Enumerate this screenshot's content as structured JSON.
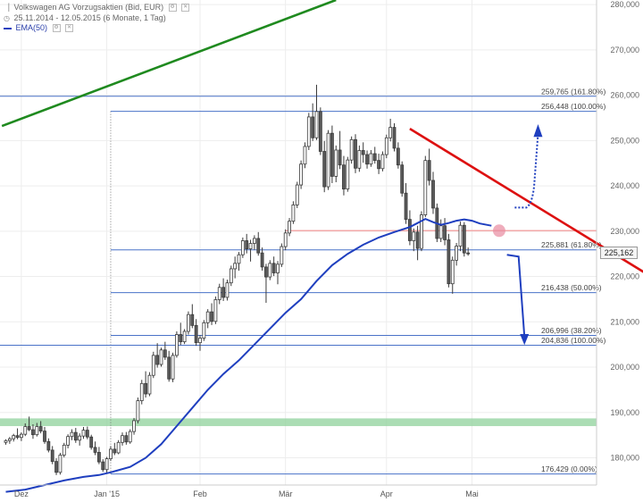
{
  "header": {
    "title": "Volkswagen AG Vorzugsaktien (Bid, EUR)",
    "range": "25.11.2014 - 12.05.2015 (6 Monate, 1 Tag)",
    "ema_label": "EMA(50)"
  },
  "colors": {
    "candle_up": "#ffffff",
    "candle_down": "#5a5a5a",
    "ema": "#1f3fbf",
    "trend_green": "#1f8a1f",
    "trend_red": "#dd1111",
    "fib_line": "#4a72c8",
    "support_zone": "#8fd19b",
    "resistance_line": "#f2a8a8",
    "arrow": "#1f3fbf"
  },
  "chart_data": {
    "type": "candlestick",
    "ylim": [
      174000,
      281000
    ],
    "y_ticks": [
      {
        "value": 180000,
        "label": "180,000"
      },
      {
        "value": 190000,
        "label": "190,000"
      },
      {
        "value": 200000,
        "label": "200,000"
      },
      {
        "value": 210000,
        "label": "210,000"
      },
      {
        "value": 220000,
        "label": "220,000"
      },
      {
        "value": 230000,
        "label": "230,000"
      },
      {
        "value": 240000,
        "label": "240,000"
      },
      {
        "value": 250000,
        "label": "250,000"
      },
      {
        "value": 260000,
        "label": "260,000"
      },
      {
        "value": 270000,
        "label": "270,000"
      },
      {
        "value": 280000,
        "label": "280,000"
      }
    ],
    "x_ticks": [
      {
        "index": 4,
        "label": "Dez"
      },
      {
        "index": 26,
        "label": "Jan '15"
      },
      {
        "index": 50,
        "label": "Feb"
      },
      {
        "index": 72,
        "label": "Mär"
      },
      {
        "index": 98,
        "label": "Apr"
      },
      {
        "index": 120,
        "label": "Mai"
      }
    ],
    "last_price": {
      "value": 225162,
      "label": "225,162"
    },
    "fib_levels": [
      {
        "value": 259765,
        "label": "259,765 (161.80%)",
        "start_index": 0
      },
      {
        "value": 256448,
        "label": "256,448 (100.00%)",
        "start_index": 27
      },
      {
        "value": 225881,
        "label": "225,881 (61.80%)",
        "start_index": 27
      },
      {
        "value": 216438,
        "label": "216,438 (50.00%)",
        "start_index": 27
      },
      {
        "value": 206996,
        "label": "206,996 (38.20%)",
        "start_index": 27
      },
      {
        "value": 204836,
        "label": "204,836 (100.00%)",
        "start_index": 0
      },
      {
        "value": 176429,
        "label": "176,429 (0.00%)",
        "start_index": 27
      }
    ],
    "support_zone": [
      187000,
      188700
    ],
    "resistance_level": 230100,
    "trendlines": [
      {
        "name": "green",
        "from": [
          -1,
          253200
        ],
        "to": [
          85,
          281000
        ]
      },
      {
        "name": "red",
        "from": [
          104,
          252600
        ],
        "to": [
          168,
          219000
        ]
      }
    ],
    "ema": [
      [
        0,
        172500
      ],
      [
        5,
        173000
      ],
      [
        10,
        174000
      ],
      [
        15,
        175000
      ],
      [
        20,
        175800
      ],
      [
        24,
        176200
      ],
      [
        27,
        176800
      ],
      [
        32,
        178000
      ],
      [
        36,
        180000
      ],
      [
        40,
        183000
      ],
      [
        44,
        187000
      ],
      [
        48,
        191000
      ],
      [
        52,
        195000
      ],
      [
        56,
        198500
      ],
      [
        60,
        201500
      ],
      [
        64,
        205000
      ],
      [
        68,
        208500
      ],
      [
        72,
        212000
      ],
      [
        76,
        215000
      ],
      [
        80,
        219000
      ],
      [
        84,
        222500
      ],
      [
        88,
        225000
      ],
      [
        92,
        227000
      ],
      [
        96,
        228600
      ],
      [
        100,
        229800
      ],
      [
        104,
        230900
      ],
      [
        106,
        231800
      ],
      [
        108,
        232700
      ],
      [
        110,
        232000
      ],
      [
        112,
        231400
      ],
      [
        114,
        231800
      ],
      [
        116,
        232300
      ],
      [
        118,
        232600
      ],
      [
        120,
        232300
      ],
      [
        122,
        231700
      ],
      [
        125,
        231200
      ]
    ],
    "candles": [
      {
        "o": 183400,
        "h": 184100,
        "l": 182900,
        "c": 183800
      },
      {
        "o": 183800,
        "h": 184600,
        "l": 183100,
        "c": 184200
      },
      {
        "o": 184200,
        "h": 185300,
        "l": 183600,
        "c": 184900
      },
      {
        "o": 184900,
        "h": 186500,
        "l": 184100,
        "c": 184500
      },
      {
        "o": 184500,
        "h": 185600,
        "l": 183700,
        "c": 185200
      },
      {
        "o": 185200,
        "h": 187600,
        "l": 184800,
        "c": 186900
      },
      {
        "o": 186900,
        "h": 189100,
        "l": 185900,
        "c": 186200
      },
      {
        "o": 186200,
        "h": 187400,
        "l": 184200,
        "c": 185100
      },
      {
        "o": 185100,
        "h": 187700,
        "l": 184700,
        "c": 186900
      },
      {
        "o": 186900,
        "h": 188100,
        "l": 185400,
        "c": 185900
      },
      {
        "o": 185900,
        "h": 186800,
        "l": 183100,
        "c": 183600
      },
      {
        "o": 183600,
        "h": 184300,
        "l": 181200,
        "c": 181700
      },
      {
        "o": 181700,
        "h": 182600,
        "l": 178600,
        "c": 179200
      },
      {
        "o": 179200,
        "h": 179900,
        "l": 176200,
        "c": 176800
      },
      {
        "o": 176800,
        "h": 181100,
        "l": 176300,
        "c": 180600
      },
      {
        "o": 180600,
        "h": 183300,
        "l": 180100,
        "c": 182800
      },
      {
        "o": 182800,
        "h": 185200,
        "l": 182100,
        "c": 184700
      },
      {
        "o": 184700,
        "h": 186300,
        "l": 183900,
        "c": 185600
      },
      {
        "o": 185600,
        "h": 186600,
        "l": 183300,
        "c": 183900
      },
      {
        "o": 183900,
        "h": 185400,
        "l": 182700,
        "c": 184800
      },
      {
        "o": 184800,
        "h": 186800,
        "l": 184200,
        "c": 186100
      },
      {
        "o": 186100,
        "h": 186900,
        "l": 184100,
        "c": 184600
      },
      {
        "o": 184600,
        "h": 185100,
        "l": 181800,
        "c": 182300
      },
      {
        "o": 182300,
        "h": 183600,
        "l": 180600,
        "c": 181200
      },
      {
        "o": 181200,
        "h": 182400,
        "l": 178600,
        "c": 179100
      },
      {
        "o": 179100,
        "h": 179700,
        "l": 176900,
        "c": 177400
      },
      {
        "o": 177400,
        "h": 180200,
        "l": 176700,
        "c": 179800
      },
      {
        "o": 179800,
        "h": 182600,
        "l": 179300,
        "c": 181900
      },
      {
        "o": 181900,
        "h": 183300,
        "l": 180600,
        "c": 181100
      },
      {
        "o": 181100,
        "h": 183900,
        "l": 180800,
        "c": 183400
      },
      {
        "o": 183400,
        "h": 185600,
        "l": 182700,
        "c": 184900
      },
      {
        "o": 184900,
        "h": 185700,
        "l": 182900,
        "c": 183500
      },
      {
        "o": 183500,
        "h": 186300,
        "l": 183100,
        "c": 185800
      },
      {
        "o": 185800,
        "h": 188800,
        "l": 185100,
        "c": 188200
      },
      {
        "o": 188200,
        "h": 193300,
        "l": 187600,
        "c": 192600
      },
      {
        "o": 192600,
        "h": 197200,
        "l": 191800,
        "c": 196400
      },
      {
        "o": 196400,
        "h": 199100,
        "l": 193300,
        "c": 194100
      },
      {
        "o": 194100,
        "h": 198900,
        "l": 193600,
        "c": 198200
      },
      {
        "o": 198200,
        "h": 203400,
        "l": 197600,
        "c": 202600
      },
      {
        "o": 202600,
        "h": 205300,
        "l": 199900,
        "c": 200600
      },
      {
        "o": 200600,
        "h": 204300,
        "l": 200100,
        "c": 203800
      },
      {
        "o": 203800,
        "h": 205600,
        "l": 201600,
        "c": 202200
      },
      {
        "o": 202200,
        "h": 203600,
        "l": 196800,
        "c": 197400
      },
      {
        "o": 197400,
        "h": 203200,
        "l": 196700,
        "c": 202600
      },
      {
        "o": 202600,
        "h": 207900,
        "l": 202100,
        "c": 207200
      },
      {
        "o": 207200,
        "h": 209800,
        "l": 204900,
        "c": 205600
      },
      {
        "o": 205600,
        "h": 208400,
        "l": 205100,
        "c": 207900
      },
      {
        "o": 207900,
        "h": 212300,
        "l": 207200,
        "c": 211600
      },
      {
        "o": 211600,
        "h": 213900,
        "l": 208600,
        "c": 209200
      },
      {
        "o": 209200,
        "h": 210600,
        "l": 204700,
        "c": 205400
      },
      {
        "o": 205400,
        "h": 207100,
        "l": 203600,
        "c": 206400
      },
      {
        "o": 206400,
        "h": 210400,
        "l": 205800,
        "c": 209800
      },
      {
        "o": 209800,
        "h": 212800,
        "l": 208600,
        "c": 212200
      },
      {
        "o": 212200,
        "h": 214100,
        "l": 209300,
        "c": 210100
      },
      {
        "o": 210100,
        "h": 215600,
        "l": 209500,
        "c": 214900
      },
      {
        "o": 214900,
        "h": 218400,
        "l": 213900,
        "c": 217600
      },
      {
        "o": 217600,
        "h": 219600,
        "l": 214600,
        "c": 215400
      },
      {
        "o": 215400,
        "h": 219300,
        "l": 214700,
        "c": 218600
      },
      {
        "o": 218600,
        "h": 222400,
        "l": 217900,
        "c": 221700
      },
      {
        "o": 221700,
        "h": 224400,
        "l": 219600,
        "c": 222900
      },
      {
        "o": 222900,
        "h": 225400,
        "l": 221300,
        "c": 224800
      },
      {
        "o": 224800,
        "h": 228600,
        "l": 224100,
        "c": 227900
      },
      {
        "o": 227900,
        "h": 229400,
        "l": 225100,
        "c": 226100
      },
      {
        "o": 226100,
        "h": 228100,
        "l": 223300,
        "c": 227300
      },
      {
        "o": 227300,
        "h": 229100,
        "l": 225900,
        "c": 228400
      },
      {
        "o": 228400,
        "h": 229800,
        "l": 224600,
        "c": 225200
      },
      {
        "o": 225200,
        "h": 226400,
        "l": 221300,
        "c": 222100
      },
      {
        "o": 222100,
        "h": 222800,
        "l": 214200,
        "c": 219900
      },
      {
        "o": 219900,
        "h": 223600,
        "l": 219200,
        "c": 222900
      },
      {
        "o": 222900,
        "h": 224400,
        "l": 220100,
        "c": 220800
      },
      {
        "o": 220800,
        "h": 223400,
        "l": 218300,
        "c": 222700
      },
      {
        "o": 222700,
        "h": 227300,
        "l": 222100,
        "c": 226600
      },
      {
        "o": 226600,
        "h": 230400,
        "l": 225800,
        "c": 229600
      },
      {
        "o": 229600,
        "h": 232900,
        "l": 228900,
        "c": 232200
      },
      {
        "o": 232200,
        "h": 236600,
        "l": 231600,
        "c": 235800
      },
      {
        "o": 235800,
        "h": 240900,
        "l": 235100,
        "c": 240200
      },
      {
        "o": 240200,
        "h": 245600,
        "l": 239300,
        "c": 244800
      },
      {
        "o": 244800,
        "h": 249600,
        "l": 243900,
        "c": 248700
      },
      {
        "o": 248700,
        "h": 256100,
        "l": 247900,
        "c": 255200
      },
      {
        "o": 255200,
        "h": 258200,
        "l": 249900,
        "c": 250600
      },
      {
        "o": 250600,
        "h": 262300,
        "l": 250100,
        "c": 256400
      },
      {
        "o": 256400,
        "h": 257300,
        "l": 246800,
        "c": 247600
      },
      {
        "o": 247600,
        "h": 249900,
        "l": 238600,
        "c": 239800
      },
      {
        "o": 239800,
        "h": 252300,
        "l": 239100,
        "c": 251600
      },
      {
        "o": 251600,
        "h": 253300,
        "l": 240600,
        "c": 242100
      },
      {
        "o": 242100,
        "h": 248900,
        "l": 240800,
        "c": 247900
      },
      {
        "o": 247900,
        "h": 252100,
        "l": 243700,
        "c": 244600
      },
      {
        "o": 244600,
        "h": 246600,
        "l": 237900,
        "c": 239300
      },
      {
        "o": 239300,
        "h": 246400,
        "l": 238700,
        "c": 245700
      },
      {
        "o": 245700,
        "h": 250900,
        "l": 244900,
        "c": 250200
      },
      {
        "o": 250200,
        "h": 251400,
        "l": 242800,
        "c": 243900
      },
      {
        "o": 243900,
        "h": 248900,
        "l": 243100,
        "c": 247800
      },
      {
        "o": 247800,
        "h": 249600,
        "l": 245100,
        "c": 246900
      },
      {
        "o": 246900,
        "h": 247800,
        "l": 243800,
        "c": 244800
      },
      {
        "o": 244800,
        "h": 247900,
        "l": 244200,
        "c": 247100
      },
      {
        "o": 247100,
        "h": 248600,
        "l": 244900,
        "c": 245600
      },
      {
        "o": 245600,
        "h": 247100,
        "l": 242600,
        "c": 243800
      },
      {
        "o": 243800,
        "h": 247600,
        "l": 243200,
        "c": 246900
      },
      {
        "o": 246900,
        "h": 251300,
        "l": 246100,
        "c": 250600
      },
      {
        "o": 250600,
        "h": 254800,
        "l": 249800,
        "c": 252900
      },
      {
        "o": 252900,
        "h": 253800,
        "l": 247600,
        "c": 248300
      },
      {
        "o": 248300,
        "h": 249600,
        "l": 243800,
        "c": 244600
      },
      {
        "o": 244600,
        "h": 245400,
        "l": 237600,
        "c": 238400
      },
      {
        "o": 238400,
        "h": 240600,
        "l": 231600,
        "c": 232600
      },
      {
        "o": 232600,
        "h": 234600,
        "l": 226900,
        "c": 227900
      },
      {
        "o": 227900,
        "h": 230600,
        "l": 225600,
        "c": 229800
      },
      {
        "o": 229800,
        "h": 231200,
        "l": 223600,
        "c": 226200
      },
      {
        "o": 226200,
        "h": 234400,
        "l": 225600,
        "c": 233600
      },
      {
        "o": 233600,
        "h": 246600,
        "l": 233100,
        "c": 245600
      },
      {
        "o": 245600,
        "h": 248200,
        "l": 240100,
        "c": 241200
      },
      {
        "o": 241200,
        "h": 243100,
        "l": 233800,
        "c": 235100
      },
      {
        "o": 235100,
        "h": 236100,
        "l": 227600,
        "c": 228400
      },
      {
        "o": 228400,
        "h": 232600,
        "l": 227600,
        "c": 231200
      },
      {
        "o": 231200,
        "h": 232900,
        "l": 226900,
        "c": 228100
      },
      {
        "o": 228100,
        "h": 229400,
        "l": 217600,
        "c": 218400
      },
      {
        "o": 218400,
        "h": 224400,
        "l": 216200,
        "c": 223600
      },
      {
        "o": 223600,
        "h": 227400,
        "l": 222400,
        "c": 226700
      },
      {
        "o": 226700,
        "h": 232100,
        "l": 225600,
        "c": 231300
      },
      {
        "o": 231300,
        "h": 232000,
        "l": 224400,
        "c": 225200
      },
      {
        "o": 225200,
        "h": 226400,
        "l": 224600,
        "c": 225162
      }
    ]
  }
}
